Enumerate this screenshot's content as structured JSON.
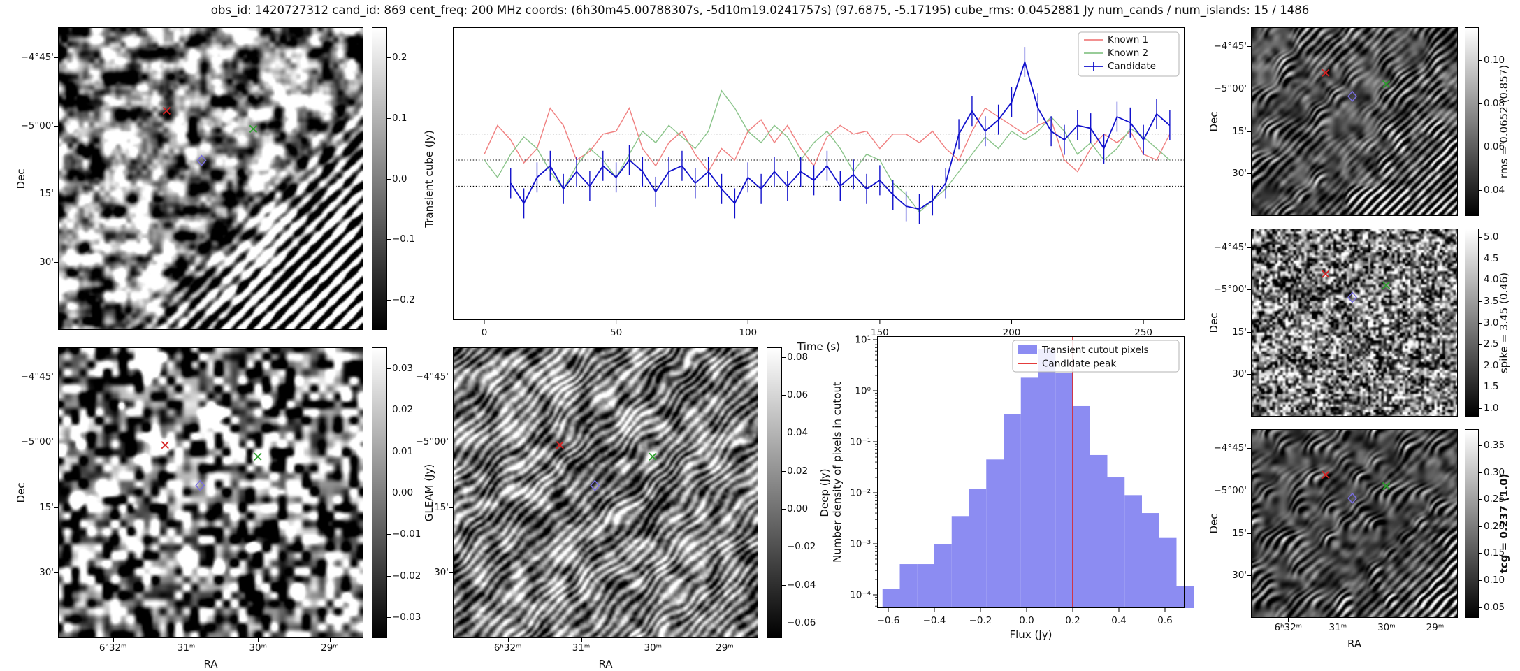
{
  "figure_title": "obs_id: 1420727312 cand_id: 869 cent_freq: 200 MHz coords: (6h30m45.00788307s, -5d10m19.0241757s) (97.6875, -5.17195) cube_rms: 0.0452881 Jy num_cands / num_islands: 15 / 1486",
  "axis_labels": {
    "dec": "Dec",
    "ra": "RA",
    "time": "Time (s)",
    "flux": "Flux (Jy)",
    "hist_y": "Number density of pixels in cutout"
  },
  "colors": {
    "known1": "#f08080",
    "known2": "#8ac48a",
    "candidate": "#1212cc",
    "hist_bar": "#8c8cf2",
    "peak_line": "#e02020",
    "marker_red": "#d62222",
    "marker_green": "#2ca02c",
    "marker_blue": "#7a6fe0"
  },
  "sky_ticks": {
    "dec": [
      {
        "label": "−4°45'",
        "f": 0.1
      },
      {
        "label": "−5°00'",
        "f": 0.325
      },
      {
        "label": "15'",
        "f": 0.55
      },
      {
        "label": "30'",
        "f": 0.775
      }
    ],
    "ra": [
      {
        "label": "6ʰ32ᵐ",
        "f": 0.18
      },
      {
        "label": "31ᵐ",
        "f": 0.42
      },
      {
        "label": "30ᵐ",
        "f": 0.655
      },
      {
        "label": "29ᵐ",
        "f": 0.89
      }
    ]
  },
  "image_panels": [
    {
      "id": "transient",
      "colorbar": {
        "label": "Transient cube (Jy)",
        "vmin": -0.25,
        "vmax": 0.25,
        "bold": false,
        "ticks": [
          {
            "label": "0.2",
            "v": 0.2
          },
          {
            "label": "0.1",
            "v": 0.1
          },
          {
            "label": "0.0",
            "v": 0.0
          },
          {
            "label": "−0.1",
            "v": -0.1
          },
          {
            "label": "−0.2",
            "v": -0.2
          }
        ]
      },
      "markers": [
        {
          "name": "red-x-marker",
          "shape": "x",
          "color": "#d62222",
          "fx": 0.355,
          "fy": 0.275
        },
        {
          "name": "green-x-marker",
          "shape": "x",
          "color": "#2ca02c",
          "fx": 0.64,
          "fy": 0.335
        },
        {
          "name": "blue-diamond-marker",
          "shape": "diamond",
          "color": "#7a6fe0",
          "fx": 0.47,
          "fy": 0.44
        }
      ]
    },
    {
      "id": "gleam",
      "colorbar": {
        "label": "GLEAM (Jy)",
        "vmin": -0.035,
        "vmax": 0.035,
        "bold": false,
        "ticks": [
          {
            "label": "0.03",
            "v": 0.03
          },
          {
            "label": "0.02",
            "v": 0.02
          },
          {
            "label": "0.01",
            "v": 0.01
          },
          {
            "label": "0.00",
            "v": 0.0
          },
          {
            "label": "−0.01",
            "v": -0.01
          },
          {
            "label": "−0.02",
            "v": -0.02
          },
          {
            "label": "−0.03",
            "v": -0.03
          }
        ]
      },
      "markers": [
        {
          "name": "red-x-marker",
          "shape": "x",
          "color": "#d62222",
          "fx": 0.35,
          "fy": 0.335
        },
        {
          "name": "green-x-marker",
          "shape": "x",
          "color": "#2ca02c",
          "fx": 0.655,
          "fy": 0.375
        },
        {
          "name": "blue-diamond-marker",
          "shape": "diamond",
          "color": "#7a6fe0",
          "fx": 0.465,
          "fy": 0.475
        }
      ]
    },
    {
      "id": "deep",
      "colorbar": {
        "label": "Deep (Jy)",
        "vmin": -0.068,
        "vmax": 0.085,
        "bold": false,
        "ticks": [
          {
            "label": "0.08",
            "v": 0.08
          },
          {
            "label": "0.06",
            "v": 0.06
          },
          {
            "label": "0.04",
            "v": 0.04
          },
          {
            "label": "0.02",
            "v": 0.02
          },
          {
            "label": "0.00",
            "v": 0.0
          },
          {
            "label": "−0.02",
            "v": -0.02
          },
          {
            "label": "−0.04",
            "v": -0.04
          },
          {
            "label": "−0.06",
            "v": -0.06
          }
        ]
      },
      "markers": [
        {
          "name": "red-x-marker",
          "shape": "x",
          "color": "#d62222",
          "fx": 0.35,
          "fy": 0.335
        },
        {
          "name": "green-x-marker",
          "shape": "x",
          "color": "#2ca02c",
          "fx": 0.655,
          "fy": 0.375
        },
        {
          "name": "blue-diamond-marker",
          "shape": "diamond",
          "color": "#7a6fe0",
          "fx": 0.465,
          "fy": 0.475
        }
      ]
    },
    {
      "id": "rms",
      "colorbar": {
        "label": "rms = 0.0652 (0.857)",
        "vmin": 0.028,
        "vmax": 0.115,
        "bold": false,
        "ticks": [
          {
            "label": "0.10",
            "v": 0.1
          },
          {
            "label": "0.08",
            "v": 0.08
          },
          {
            "label": "0.06",
            "v": 0.06
          },
          {
            "label": "0.04",
            "v": 0.04
          }
        ]
      },
      "markers": [
        {
          "name": "red-x-marker",
          "shape": "x",
          "color": "#d62222",
          "fx": 0.36,
          "fy": 0.24
        },
        {
          "name": "green-x-marker",
          "shape": "x",
          "color": "#2ca02c",
          "fx": 0.655,
          "fy": 0.3
        },
        {
          "name": "blue-diamond-marker",
          "shape": "diamond",
          "color": "#7a6fe0",
          "fx": 0.49,
          "fy": 0.365
        }
      ]
    },
    {
      "id": "spike",
      "colorbar": {
        "label": "spike = 3.45 (0.46)",
        "vmin": 0.8,
        "vmax": 5.2,
        "bold": false,
        "ticks": [
          {
            "label": "5.0",
            "v": 5.0
          },
          {
            "label": "4.5",
            "v": 4.5
          },
          {
            "label": "4.0",
            "v": 4.0
          },
          {
            "label": "3.5",
            "v": 3.5
          },
          {
            "label": "3.0",
            "v": 3.0
          },
          {
            "label": "2.5",
            "v": 2.5
          },
          {
            "label": "2.0",
            "v": 2.0
          },
          {
            "label": "1.5",
            "v": 1.5
          },
          {
            "label": "1.0",
            "v": 1.0
          }
        ]
      },
      "markers": [
        {
          "name": "red-x-marker",
          "shape": "x",
          "color": "#d62222",
          "fx": 0.36,
          "fy": 0.24
        },
        {
          "name": "green-x-marker",
          "shape": "x",
          "color": "#2ca02c",
          "fx": 0.655,
          "fy": 0.3
        },
        {
          "name": "blue-diamond-marker",
          "shape": "diamond",
          "color": "#7a6fe0",
          "fx": 0.49,
          "fy": 0.365
        }
      ]
    },
    {
      "id": "tcg",
      "colorbar": {
        "label": "tcg = 0.237 (1.0)",
        "vmin": 0.03,
        "vmax": 0.38,
        "bold": true,
        "ticks": [
          {
            "label": "0.35",
            "v": 0.35
          },
          {
            "label": "0.30",
            "v": 0.3
          },
          {
            "label": "0.25",
            "v": 0.25
          },
          {
            "label": "0.20",
            "v": 0.2
          },
          {
            "label": "0.15",
            "v": 0.15
          },
          {
            "label": "0.10",
            "v": 0.1
          },
          {
            "label": "0.05",
            "v": 0.05
          }
        ]
      },
      "markers": [
        {
          "name": "red-x-marker",
          "shape": "x",
          "color": "#d62222",
          "fx": 0.36,
          "fy": 0.24
        },
        {
          "name": "green-x-marker",
          "shape": "x",
          "color": "#2ca02c",
          "fx": 0.655,
          "fy": 0.3
        },
        {
          "name": "blue-diamond-marker",
          "shape": "diamond",
          "color": "#7a6fe0",
          "fx": 0.49,
          "fy": 0.365
        }
      ]
    }
  ],
  "chart_data": [
    {
      "type": "line",
      "title": "",
      "xlabel": "Time (s)",
      "ylabel": "",
      "xlim": [
        -12,
        266
      ],
      "ylim": [
        -0.277,
        0.23
      ],
      "xticks": [
        0,
        50,
        100,
        150,
        200,
        250
      ],
      "hlines": [
        0.0452881,
        0.0,
        -0.0452881
      ],
      "legend_position": "upper right",
      "series": [
        {
          "name": "Known 1",
          "color": "#f08080",
          "x": [
            0,
            5,
            10,
            15,
            20,
            25,
            30,
            35,
            40,
            45,
            50,
            55,
            60,
            65,
            70,
            75,
            80,
            85,
            90,
            95,
            100,
            105,
            110,
            115,
            120,
            125,
            130,
            135,
            140,
            145,
            150,
            155,
            160,
            165,
            170,
            175,
            180,
            185,
            190,
            195,
            200,
            205,
            210,
            215,
            220,
            225,
            230,
            235,
            240,
            245,
            250,
            255,
            260
          ],
          "y": [
            0.01,
            0.06,
            0.035,
            -0.005,
            0.02,
            0.09,
            0.06,
            0.0,
            0.015,
            0.045,
            0.05,
            0.09,
            0.02,
            -0.01,
            0.03,
            0.05,
            0.01,
            -0.02,
            0.02,
            0.0,
            0.05,
            0.07,
            0.03,
            0.06,
            0.02,
            -0.01,
            0.04,
            0.06,
            0.045,
            0.05,
            0.02,
            0.045,
            0.045,
            0.03,
            0.05,
            0.02,
            0.0,
            0.05,
            0.09,
            0.075,
            0.06,
            0.045,
            0.06,
            0.07,
            0.0,
            -0.02,
            0.02,
            0.045,
            0.03,
            0.05,
            0.01,
            0.0,
            0.045
          ]
        },
        {
          "name": "Known 2",
          "color": "#8ac48a",
          "x": [
            0,
            5,
            10,
            15,
            20,
            25,
            30,
            35,
            40,
            45,
            50,
            55,
            60,
            65,
            70,
            75,
            80,
            85,
            90,
            95,
            100,
            105,
            110,
            115,
            120,
            125,
            130,
            135,
            140,
            145,
            150,
            155,
            160,
            165,
            170,
            175,
            180,
            185,
            190,
            195,
            200,
            205,
            210,
            215,
            220,
            225,
            230,
            235,
            240,
            245,
            250,
            255,
            260
          ],
          "y": [
            0.0,
            -0.03,
            0.01,
            0.04,
            0.02,
            -0.02,
            -0.05,
            -0.01,
            0.02,
            0.0,
            -0.03,
            0.01,
            0.05,
            0.03,
            0.06,
            0.04,
            0.02,
            0.05,
            0.12,
            0.09,
            0.05,
            0.03,
            0.06,
            0.04,
            0.0,
            0.03,
            0.05,
            0.02,
            -0.02,
            0.01,
            0.0,
            -0.04,
            -0.06,
            -0.09,
            -0.07,
            -0.05,
            -0.02,
            0.01,
            0.04,
            0.02,
            0.05,
            0.035,
            0.05,
            0.075,
            0.05,
            0.01,
            0.03,
            0.0,
            0.02,
            0.055,
            0.04,
            0.02,
            0.0
          ]
        },
        {
          "name": "Candidate",
          "color": "#1212cc",
          "yerr": 0.026,
          "x": [
            10,
            15,
            20,
            25,
            30,
            35,
            40,
            45,
            50,
            55,
            60,
            65,
            70,
            75,
            80,
            85,
            90,
            95,
            100,
            105,
            110,
            115,
            120,
            125,
            130,
            135,
            140,
            145,
            150,
            155,
            160,
            165,
            170,
            175,
            180,
            185,
            190,
            195,
            200,
            205,
            210,
            215,
            220,
            225,
            230,
            235,
            240,
            245,
            250,
            255,
            260
          ],
          "y": [
            -0.04,
            -0.075,
            -0.03,
            -0.01,
            -0.05,
            -0.02,
            -0.045,
            -0.01,
            -0.03,
            0.0,
            -0.02,
            -0.055,
            -0.02,
            -0.01,
            -0.04,
            -0.02,
            -0.05,
            -0.075,
            -0.03,
            -0.05,
            -0.02,
            -0.045,
            -0.02,
            -0.035,
            -0.01,
            -0.045,
            -0.025,
            -0.05,
            -0.035,
            -0.06,
            -0.08,
            -0.085,
            -0.07,
            -0.04,
            0.045,
            0.085,
            0.05,
            0.07,
            0.1,
            0.17,
            0.09,
            0.05,
            0.035,
            0.06,
            0.055,
            0.02,
            0.075,
            0.065,
            0.035,
            0.08,
            0.06
          ]
        }
      ]
    },
    {
      "type": "bar",
      "title": "",
      "xlabel": "Flux (Jy)",
      "ylabel": "Number density of pixels in cutout",
      "yscale": "log",
      "xlim": [
        -0.648,
        0.685
      ],
      "ylim": [
        5e-05,
        12
      ],
      "xticks": [
        -0.6,
        -0.4,
        -0.2,
        0.0,
        0.2,
        0.4,
        0.6
      ],
      "ytick_labels": [
        "10¹",
        "10⁰",
        "10⁻¹",
        "10⁻²",
        "10⁻³",
        "10⁻⁴"
      ],
      "ytick_exponents": [
        1,
        0,
        -1,
        -2,
        -3,
        -4
      ],
      "bar_color": "#8c8cf2",
      "bin_edges": [
        -0.625,
        -0.55,
        -0.475,
        -0.4,
        -0.325,
        -0.25,
        -0.175,
        -0.1,
        -0.025,
        0.05,
        0.125,
        0.2,
        0.275,
        0.35,
        0.425,
        0.5,
        0.575,
        0.65,
        0.725
      ],
      "densities": [
        0.00013,
        0.0004,
        0.0004,
        0.001,
        0.0035,
        0.012,
        0.045,
        0.35,
        1.8,
        6.5,
        2.2,
        0.5,
        0.055,
        0.02,
        0.009,
        0.004,
        0.0013,
        0.00015
      ],
      "vline": {
        "x": 0.2,
        "color": "#e02020"
      },
      "legend": [
        "Transient cutout pixels",
        "Candidate peak"
      ]
    }
  ]
}
